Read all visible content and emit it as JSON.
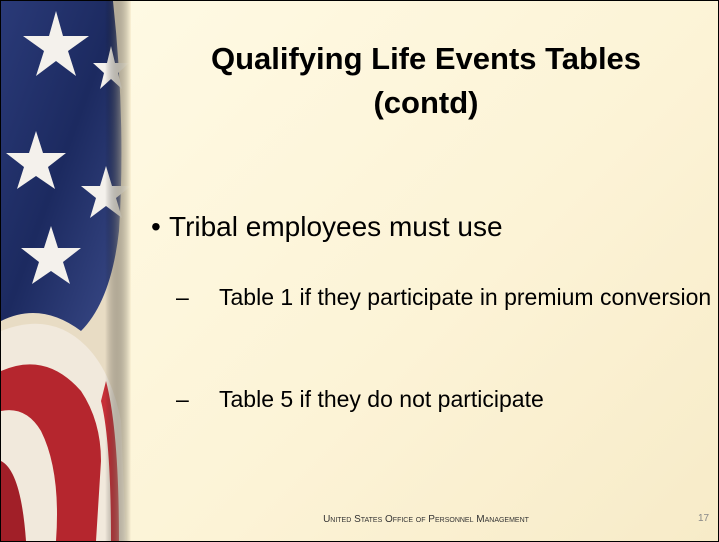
{
  "slide": {
    "title": "Qualifying Life Events Tables (contd)",
    "bullets": [
      {
        "text": "Tribal employees must use",
        "subitems": [
          "Table 1 if they participate in premium conversion",
          "Table 5 if they do not participate"
        ]
      }
    ],
    "footer": "United States Office of Personnel Management",
    "page_number": "17"
  }
}
